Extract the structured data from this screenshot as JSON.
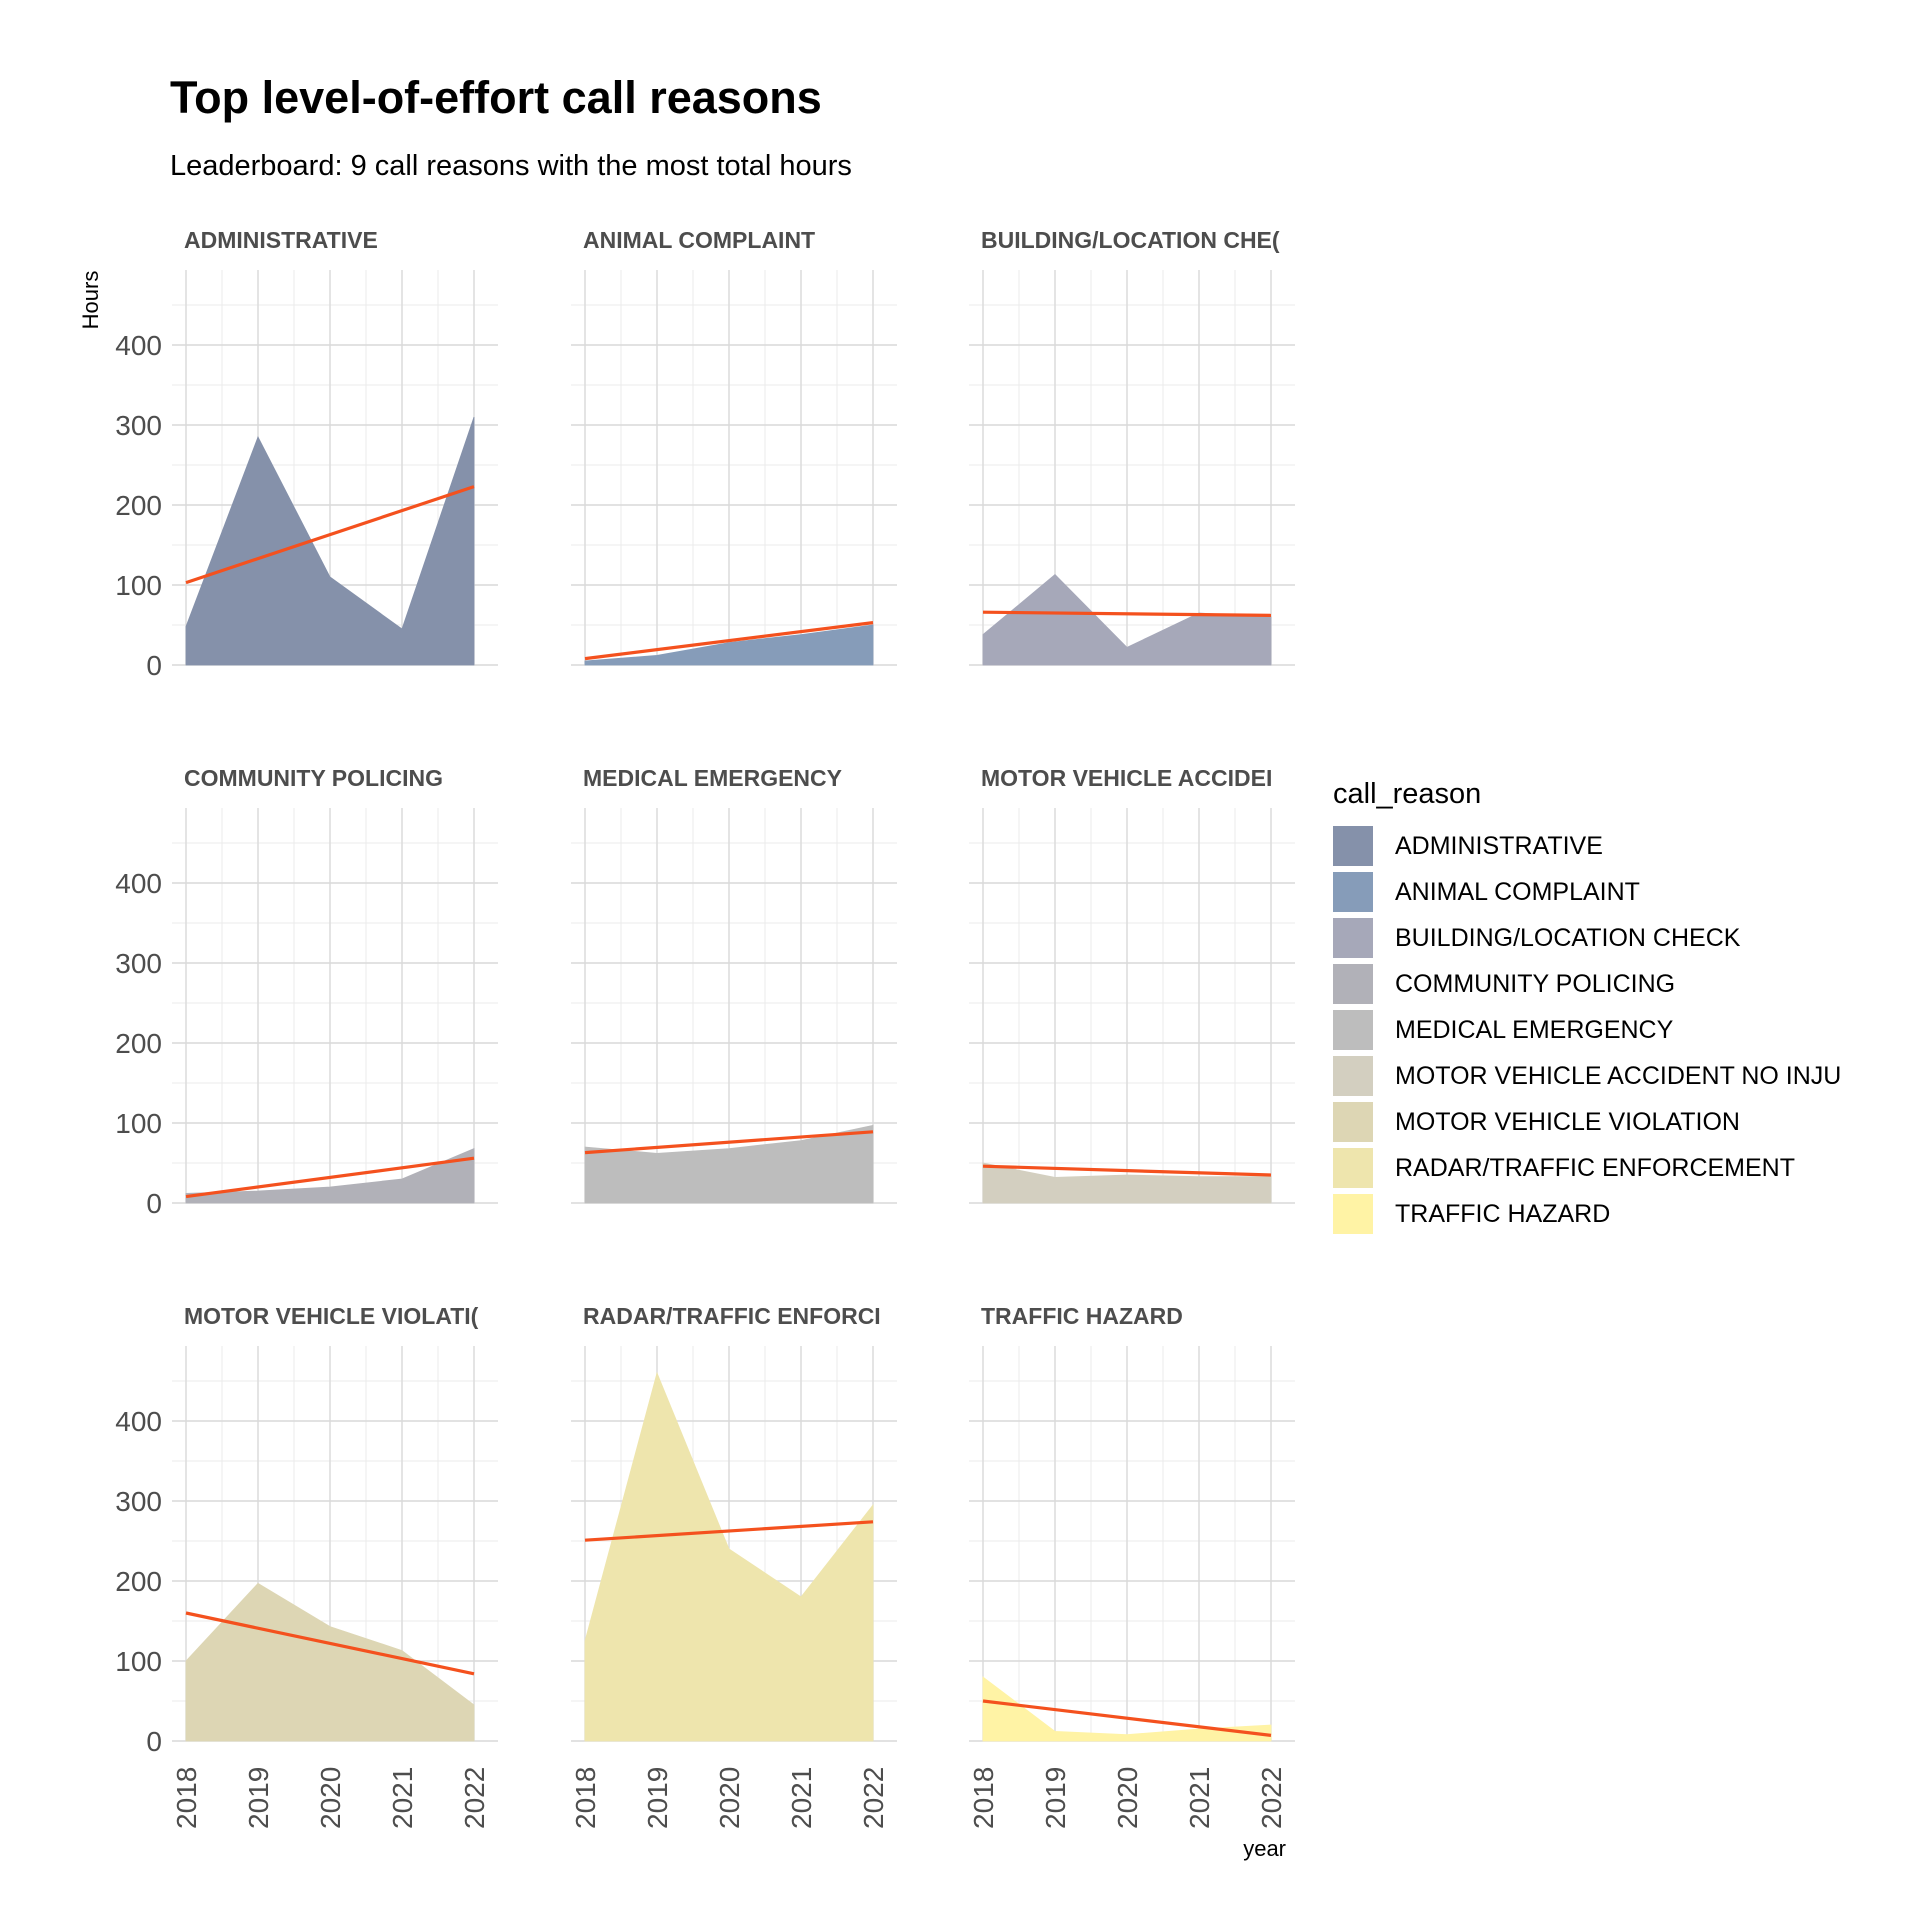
{
  "title": "Top level-of-effort call reasons",
  "subtitle": "Leaderboard: 9 call reasons with the most total hours",
  "legend": {
    "title": "call_reason",
    "items": [
      {
        "label": "ADMINISTRATIVE",
        "color": "#8591aa"
      },
      {
        "label": "ANIMAL COMPLAINT",
        "color": "#869cb9"
      },
      {
        "label": "BUILDING/LOCATION CHECK",
        "color": "#a6a8b9"
      },
      {
        "label": "COMMUNITY POLICING",
        "color": "#b1b1b8"
      },
      {
        "label": "MEDICAL EMERGENCY",
        "color": "#bdbdbd"
      },
      {
        "label": "MOTOR VEHICLE ACCIDENT NO INJU",
        "color": "#d3cfc0"
      },
      {
        "label": "MOTOR VEHICLE VIOLATION",
        "color": "#ddd6b4"
      },
      {
        "label": "RADAR/TRAFFIC ENFORCEMENT",
        "color": "#eee5ad"
      },
      {
        "label": "TRAFFIC HAZARD",
        "color": "#fff3a5"
      }
    ]
  },
  "chart_data": {
    "type": "area",
    "facet_layout": "3x3",
    "xlabel": "year",
    "ylabel": "Hours",
    "x": [
      2018,
      2019,
      2020,
      2021,
      2022
    ],
    "ylim": [
      0,
      490
    ],
    "yticks": [
      0,
      100,
      200,
      300,
      400
    ],
    "trend_color": "#f4511e",
    "grid": true,
    "legend_position": "right",
    "panels": [
      {
        "name": "ADMINISTRATIVE",
        "strip": "ADMINISTRATIVE",
        "values": [
          48,
          285,
          110,
          45,
          310
        ],
        "trend": [
          103,
          223
        ]
      },
      {
        "name": "ANIMAL COMPLAINT",
        "strip": "ANIMAL COMPLAINT",
        "values": [
          5,
          12,
          28,
          38,
          50
        ],
        "trend": [
          8,
          53
        ]
      },
      {
        "name": "BUILDING/LOCATION CHECK",
        "strip": "BUILDING/LOCATION CHE(",
        "values": [
          38,
          113,
          22,
          65,
          60
        ],
        "trend": [
          66,
          62
        ]
      },
      {
        "name": "COMMUNITY POLICING",
        "strip": "COMMUNITY POLICING",
        "values": [
          12,
          15,
          20,
          30,
          68
        ],
        "trend": [
          8,
          56
        ]
      },
      {
        "name": "MEDICAL EMERGENCY",
        "strip": "MEDICAL EMERGENCY",
        "values": [
          70,
          62,
          68,
          78,
          97
        ],
        "trend": [
          63,
          89
        ]
      },
      {
        "name": "MOTOR VEHICLE ACCIDENT NO INJU",
        "strip": "MOTOR VEHICLE ACCIDEI",
        "values": [
          50,
          32,
          35,
          33,
          33
        ],
        "trend": [
          46,
          35
        ]
      },
      {
        "name": "MOTOR VEHICLE VIOLATION",
        "strip": "MOTOR VEHICLE VIOLATI(",
        "values": [
          100,
          197,
          143,
          113,
          45
        ],
        "trend": [
          160,
          84
        ]
      },
      {
        "name": "RADAR/TRAFFIC ENFORCEMENT",
        "strip": "RADAR/TRAFFIC ENFORCI",
        "values": [
          125,
          460,
          240,
          180,
          295
        ],
        "trend": [
          251,
          274
        ]
      },
      {
        "name": "TRAFFIC HAZARD",
        "strip": "TRAFFIC HAZARD",
        "values": [
          80,
          12,
          8,
          15,
          20
        ],
        "trend": [
          50,
          7
        ]
      }
    ]
  }
}
